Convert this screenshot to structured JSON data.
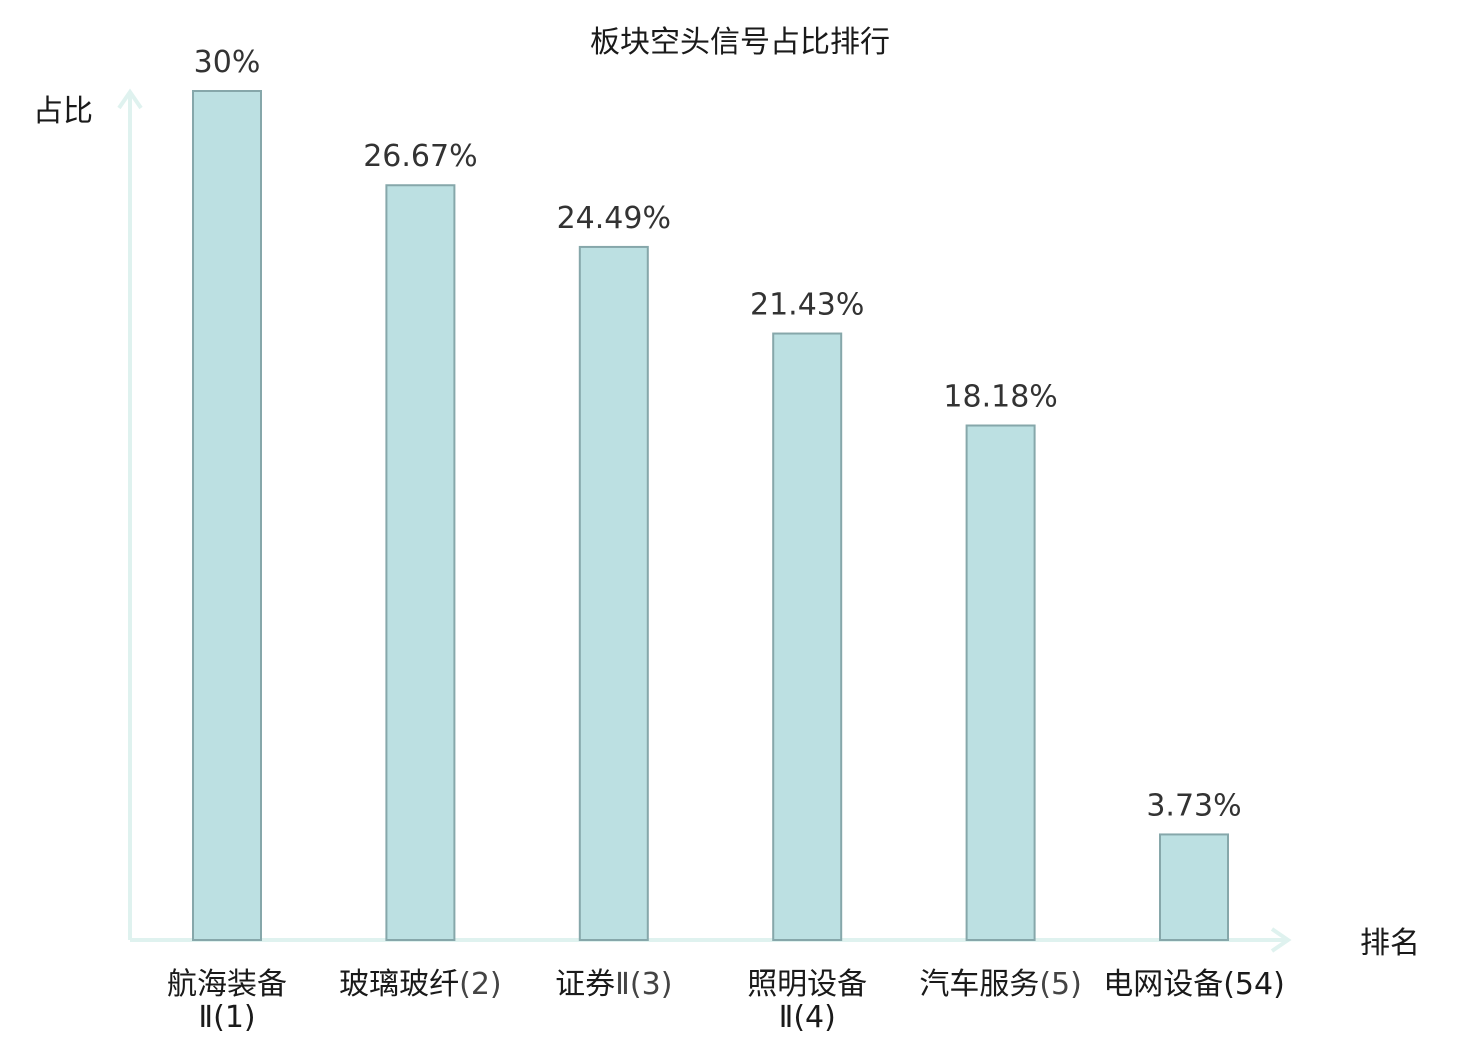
{
  "chart_data": {
    "type": "bar",
    "title": "板块空头信号占比排行",
    "ylabel": "占比",
    "xlabel": "排名",
    "ylim": [
      0,
      30
    ],
    "grid": false,
    "categories": [
      {
        "lines": [
          [
            "航海装备",
            ""
          ],
          [
            "Ⅱ(1)",
            ""
          ]
        ],
        "highlight": false
      },
      {
        "lines": [
          [
            "玻璃玻纤",
            "(2)"
          ]
        ],
        "highlight": false
      },
      {
        "lines": [
          [
            "证券",
            "Ⅱ(3)"
          ]
        ],
        "highlight": false
      },
      {
        "lines": [
          [
            "照明设备",
            ""
          ],
          [
            "Ⅱ(4)",
            ""
          ]
        ],
        "highlight": false
      },
      {
        "lines": [
          [
            "汽车服务",
            "(5)"
          ]
        ],
        "highlight": false
      },
      {
        "lines": [
          [
            "电网设备",
            "(54)"
          ]
        ],
        "highlight": true
      }
    ],
    "values": [
      30,
      26.67,
      24.49,
      21.43,
      18.18,
      3.73
    ],
    "value_labels": [
      "30%",
      "26.67%",
      "24.49%",
      "21.43%",
      "18.18%",
      "3.73%"
    ],
    "colors": {
      "bar_fill": "#bce0e2",
      "bar_stroke": "#86a7aa",
      "axis": "#dff2ef",
      "highlight_text": "#e8201c"
    }
  }
}
